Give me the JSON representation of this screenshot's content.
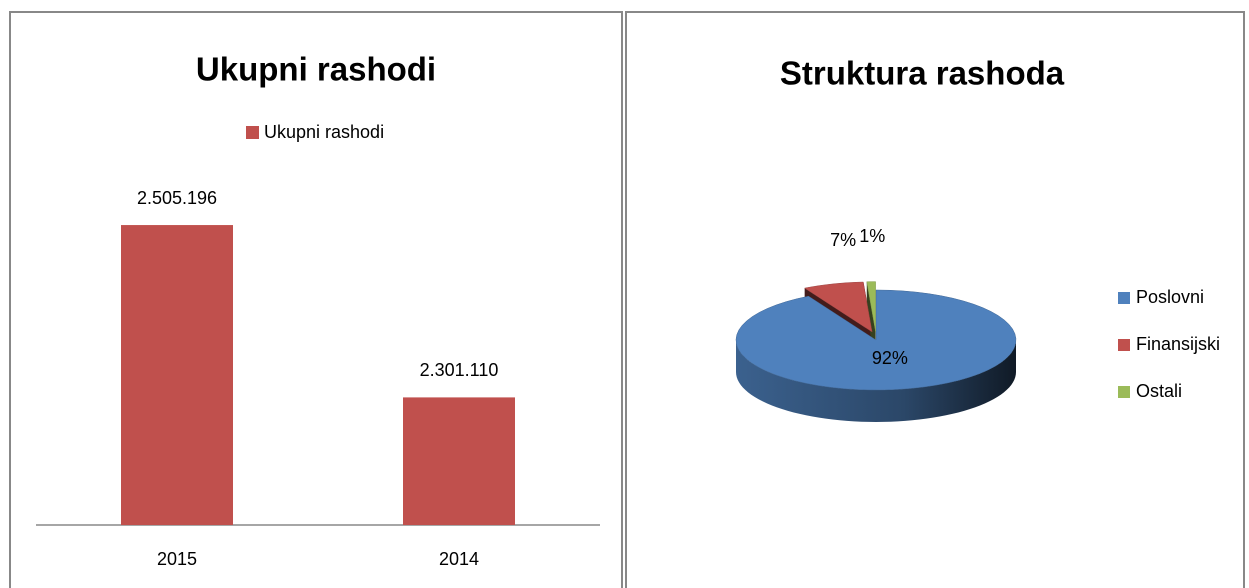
{
  "chart_data": [
    {
      "type": "bar",
      "title": "Ukupni rashodi",
      "categories": [
        "2015",
        "2014"
      ],
      "series": [
        {
          "name": "Ukupni rashodi",
          "color": "#c0504d",
          "values": [
            2505196,
            2301110
          ],
          "value_labels": [
            "2.505.196",
            "2.301.110"
          ]
        }
      ],
      "ylim": [
        2150000,
        2600000
      ]
    },
    {
      "type": "pie",
      "title": "Struktura rashoda",
      "categories": [
        "Poslovni",
        "Finansijski",
        "Ostali"
      ],
      "values": [
        92,
        7,
        1
      ],
      "value_labels": [
        "92%",
        "7%",
        "1%"
      ],
      "colors": [
        "#4f81bd",
        "#c0504d",
        "#9bbb59"
      ],
      "legend": "right"
    }
  ]
}
